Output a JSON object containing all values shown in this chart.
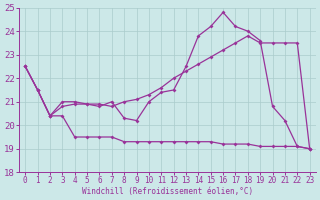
{
  "xlabel": "Windchill (Refroidissement éolien,°C)",
  "xlim": [
    -0.5,
    23.5
  ],
  "ylim": [
    18,
    25
  ],
  "yticks": [
    18,
    19,
    20,
    21,
    22,
    23,
    24,
    25
  ],
  "xticks": [
    0,
    1,
    2,
    3,
    4,
    5,
    6,
    7,
    8,
    9,
    10,
    11,
    12,
    13,
    14,
    15,
    16,
    17,
    18,
    19,
    20,
    21,
    22,
    23
  ],
  "bg_color": "#cce8e8",
  "line_color": "#993399",
  "grid_color": "#aacccc",
  "line1_x": [
    0,
    1,
    2,
    3,
    4,
    5,
    6,
    7,
    8,
    9,
    10,
    11,
    12,
    13,
    14,
    15,
    16,
    17,
    18,
    19,
    20,
    21,
    22,
    23
  ],
  "line1_y": [
    22.5,
    21.5,
    20.4,
    20.4,
    19.5,
    19.5,
    19.5,
    19.5,
    19.3,
    19.3,
    19.3,
    19.3,
    19.3,
    19.3,
    19.3,
    19.3,
    19.2,
    19.2,
    19.2,
    19.1,
    19.1,
    19.1,
    19.1,
    19.0
  ],
  "line2_x": [
    0,
    1,
    2,
    3,
    4,
    5,
    6,
    7,
    8,
    9,
    10,
    11,
    12,
    13,
    14,
    15,
    16,
    17,
    18,
    19,
    20,
    21,
    22,
    23
  ],
  "line2_y": [
    22.5,
    21.5,
    20.4,
    20.8,
    20.9,
    20.9,
    20.8,
    21.0,
    20.3,
    20.2,
    21.0,
    21.4,
    21.5,
    22.5,
    23.8,
    24.2,
    24.8,
    24.2,
    24.0,
    23.6,
    20.8,
    20.2,
    19.1,
    19.0
  ],
  "line3_x": [
    0,
    1,
    2,
    3,
    4,
    5,
    6,
    7,
    8,
    9,
    10,
    11,
    12,
    13,
    14,
    15,
    16,
    17,
    18,
    19,
    20,
    21,
    22,
    23
  ],
  "line3_y": [
    22.5,
    21.5,
    20.4,
    21.0,
    21.0,
    20.9,
    20.9,
    20.8,
    21.0,
    21.1,
    21.3,
    21.6,
    22.0,
    22.3,
    22.6,
    22.9,
    23.2,
    23.5,
    23.8,
    23.5,
    23.5,
    23.5,
    23.5,
    19.0
  ]
}
